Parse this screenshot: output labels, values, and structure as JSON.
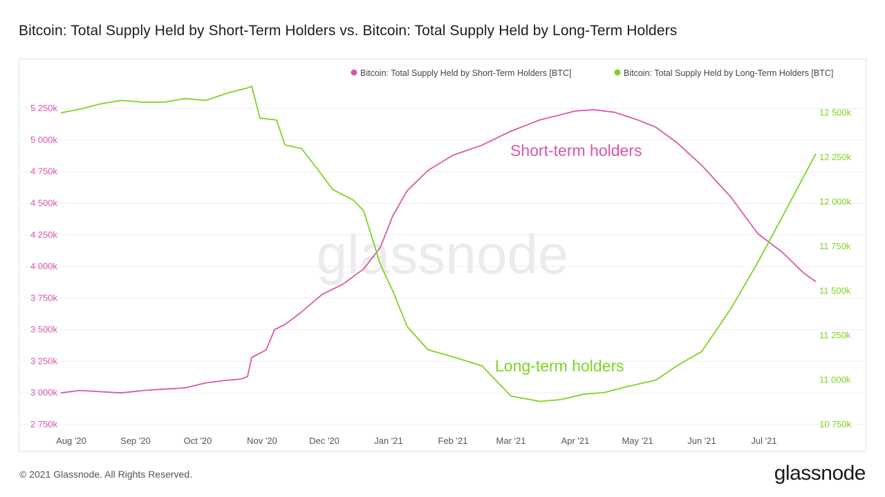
{
  "title": "Bitcoin: Total Supply Held by Short-Term Holders vs. Bitcoin: Total Supply Held by Long-Term Holders",
  "footer": {
    "copyright": "© 2021 Glassnode. All Rights Reserved.",
    "brand": "glassnode"
  },
  "watermark": "glassnode",
  "colors": {
    "short_term": "#d957a7",
    "long_term": "#7ed321",
    "grid": "#eeeeee",
    "axis_text": "#555555"
  },
  "chart_data": {
    "type": "line",
    "title": "Bitcoin: Total Supply Held by Short-Term Holders vs. Bitcoin: Total Supply Held by Long-Term Holders",
    "legend_position": "top-right",
    "grid": true,
    "x_ticks": [
      "Aug '20",
      "Sep '20",
      "Oct '20",
      "Nov '20",
      "Dec '20",
      "Jan '21",
      "Feb '21",
      "Mar '21",
      "Apr '21",
      "May '21",
      "Jun '21",
      "Jul '21"
    ],
    "y_left": {
      "ticks": [
        "2 750k",
        "3 000k",
        "3 250k",
        "3 500k",
        "3 750k",
        "4 000k",
        "4 250k",
        "4 500k",
        "4 750k",
        "5 000k",
        "5 250k"
      ],
      "ylim": [
        2750000,
        5300000
      ]
    },
    "y_right": {
      "ticks": [
        "10 750k",
        "11 000k",
        "11 250k",
        "11 500k",
        "11 750k",
        "12 000k",
        "12 250k",
        "12 500k"
      ],
      "ylim": [
        10750000,
        12560000
      ]
    },
    "series": [
      {
        "name": "Bitcoin: Total Supply Held by Short-Term Holders [BTC]",
        "axis": "left",
        "annotation": "Short-term holders",
        "points": [
          [
            "2020-07-27",
            3000000
          ],
          [
            "2020-08-05",
            3020000
          ],
          [
            "2020-08-15",
            3010000
          ],
          [
            "2020-08-25",
            3000000
          ],
          [
            "2020-09-05",
            3020000
          ],
          [
            "2020-09-15",
            3030000
          ],
          [
            "2020-09-25",
            3040000
          ],
          [
            "2020-10-05",
            3080000
          ],
          [
            "2020-10-15",
            3100000
          ],
          [
            "2020-10-22",
            3110000
          ],
          [
            "2020-10-25",
            3130000
          ],
          [
            "2020-10-27",
            3280000
          ],
          [
            "2020-11-03",
            3340000
          ],
          [
            "2020-11-07",
            3500000
          ],
          [
            "2020-11-12",
            3540000
          ],
          [
            "2020-11-20",
            3640000
          ],
          [
            "2020-11-30",
            3780000
          ],
          [
            "2020-12-10",
            3860000
          ],
          [
            "2020-12-20",
            3980000
          ],
          [
            "2020-12-28",
            4150000
          ],
          [
            "2021-01-03",
            4400000
          ],
          [
            "2021-01-10",
            4600000
          ],
          [
            "2021-01-20",
            4760000
          ],
          [
            "2021-02-01",
            4880000
          ],
          [
            "2021-02-15",
            4960000
          ],
          [
            "2021-03-01",
            5070000
          ],
          [
            "2021-03-15",
            5160000
          ],
          [
            "2021-03-25",
            5200000
          ],
          [
            "2021-04-01",
            5230000
          ],
          [
            "2021-04-10",
            5240000
          ],
          [
            "2021-04-20",
            5220000
          ],
          [
            "2021-05-01",
            5160000
          ],
          [
            "2021-05-10",
            5100000
          ],
          [
            "2021-05-20",
            4980000
          ],
          [
            "2021-06-01",
            4800000
          ],
          [
            "2021-06-15",
            4550000
          ],
          [
            "2021-06-28",
            4260000
          ],
          [
            "2021-07-10",
            4110000
          ],
          [
            "2021-07-20",
            3950000
          ],
          [
            "2021-07-26",
            3880000
          ]
        ]
      },
      {
        "name": "Bitcoin: Total Supply Held by Long-Term Holders [BTC]",
        "axis": "right",
        "annotation": "Long-term holders",
        "points": [
          [
            "2020-07-27",
            12500000
          ],
          [
            "2020-08-05",
            12520000
          ],
          [
            "2020-08-15",
            12550000
          ],
          [
            "2020-08-25",
            12570000
          ],
          [
            "2020-09-05",
            12560000
          ],
          [
            "2020-09-15",
            12560000
          ],
          [
            "2020-09-25",
            12580000
          ],
          [
            "2020-10-05",
            12570000
          ],
          [
            "2020-10-15",
            12610000
          ],
          [
            "2020-10-25",
            12640000
          ],
          [
            "2020-10-27",
            12650000
          ],
          [
            "2020-10-31",
            12470000
          ],
          [
            "2020-11-08",
            12460000
          ],
          [
            "2020-11-12",
            12320000
          ],
          [
            "2020-11-20",
            12300000
          ],
          [
            "2020-11-28",
            12180000
          ],
          [
            "2020-12-05",
            12070000
          ],
          [
            "2020-12-15",
            12010000
          ],
          [
            "2020-12-20",
            11950000
          ],
          [
            "2020-12-28",
            11650000
          ],
          [
            "2021-01-03",
            11500000
          ],
          [
            "2021-01-10",
            11300000
          ],
          [
            "2021-01-20",
            11170000
          ],
          [
            "2021-02-01",
            11130000
          ],
          [
            "2021-02-15",
            11080000
          ],
          [
            "2021-03-01",
            10910000
          ],
          [
            "2021-03-15",
            10880000
          ],
          [
            "2021-03-25",
            10890000
          ],
          [
            "2021-04-05",
            10920000
          ],
          [
            "2021-04-15",
            10930000
          ],
          [
            "2021-04-25",
            10960000
          ],
          [
            "2021-05-10",
            11000000
          ],
          [
            "2021-05-20",
            11080000
          ],
          [
            "2021-06-01",
            11160000
          ],
          [
            "2021-06-15",
            11400000
          ],
          [
            "2021-06-28",
            11660000
          ],
          [
            "2021-07-10",
            11920000
          ],
          [
            "2021-07-20",
            12140000
          ],
          [
            "2021-07-26",
            12270000
          ]
        ]
      }
    ]
  }
}
